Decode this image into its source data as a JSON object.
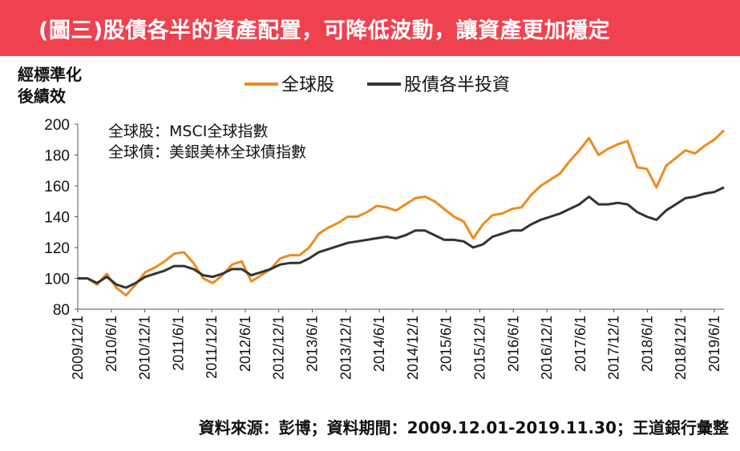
{
  "header": {
    "title": "(圖三)股債各半的資產配置，可降低波動，讓資產更加穩定"
  },
  "chart_data": {
    "type": "line",
    "ylabel_lines": [
      "經標準化",
      "後績效"
    ],
    "ylim": [
      80,
      200
    ],
    "yticks": [
      "80",
      "100",
      "120",
      "140",
      "160",
      "180",
      "200"
    ],
    "x_tick_labels": [
      "2009/12/1",
      "2010/6/1",
      "2010/12/1",
      "2011/6/1",
      "2011/12/1",
      "2012/6/1",
      "2012/12/1",
      "2013/6/1",
      "2013/12/1",
      "2014/6/1",
      "2014/12/1",
      "2015/6/1",
      "2015/12/1",
      "2016/6/1",
      "2016/12/1",
      "2017/6/1",
      "2017/12/1",
      "2018/6/1",
      "2018/12/1",
      "2019/6/1"
    ],
    "legend": {
      "placement": "top-center"
    },
    "annotations": [
      "全球股：MSCI全球指數",
      "全球債：美銀美林全球債指數"
    ],
    "series": [
      {
        "name": "全球股",
        "color": "#f08a1c",
        "values": [
          100,
          100,
          96,
          103,
          94,
          89,
          96,
          104,
          107,
          111,
          116,
          117,
          110,
          100,
          97,
          102,
          109,
          111,
          98,
          102,
          106,
          113,
          115,
          115,
          120,
          129,
          133,
          136,
          140,
          140,
          143,
          147,
          146,
          144,
          148,
          152,
          153,
          150,
          145,
          140,
          137,
          126,
          135,
          141,
          142,
          145,
          146,
          154,
          160,
          164,
          168,
          176,
          183,
          191,
          180,
          184,
          187,
          189,
          172,
          171,
          159,
          173,
          178,
          183,
          181,
          186,
          190,
          196
        ]
      },
      {
        "name": "股債各半投資",
        "color": "#333333",
        "values": [
          100,
          100,
          97,
          101,
          96,
          94,
          97,
          101,
          103,
          105,
          108,
          108,
          106,
          102,
          101,
          103,
          106,
          106,
          102,
          104,
          106,
          109,
          110,
          110,
          113,
          117,
          119,
          121,
          123,
          124,
          125,
          126,
          127,
          126,
          128,
          131,
          131,
          128,
          125,
          125,
          124,
          120,
          122,
          127,
          129,
          131,
          131,
          135,
          138,
          140,
          142,
          145,
          148,
          153,
          148,
          148,
          149,
          148,
          143,
          140,
          138,
          144,
          148,
          152,
          153,
          155,
          156,
          159
        ]
      }
    ]
  },
  "footer": {
    "source": "資料來源：彭博；資料期間：2009.12.01-2019.11.30；王道銀行彙整"
  }
}
